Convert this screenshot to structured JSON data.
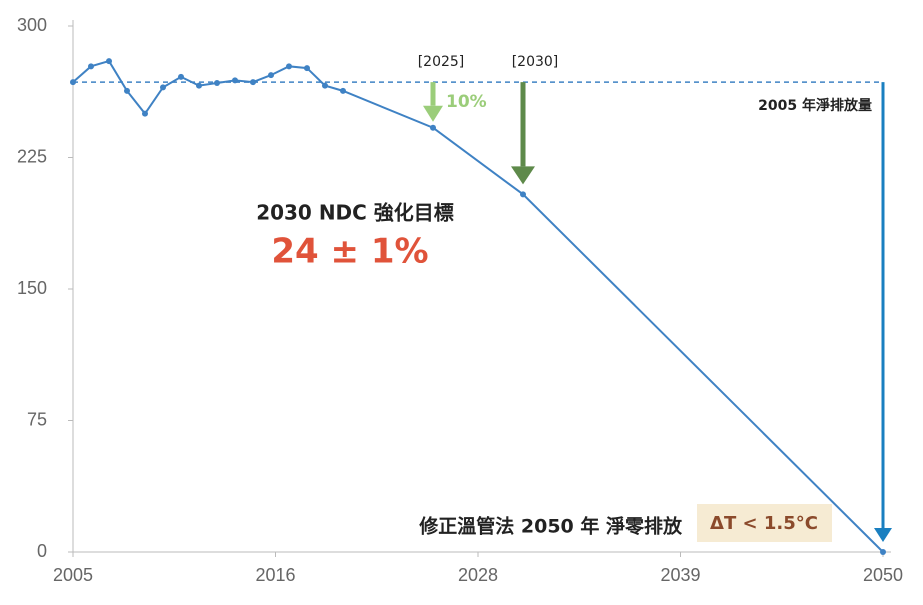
{
  "chart_data": {
    "type": "line",
    "x": [
      2005,
      2006,
      2007,
      2008,
      2009,
      2010,
      2011,
      2012,
      2013,
      2014,
      2015,
      2016,
      2017,
      2018,
      2019,
      2020,
      2025,
      2030,
      2050
    ],
    "series": [
      {
        "color": "#3f82c4",
        "values": [
          268,
          277,
          280,
          263,
          250,
          265,
          271,
          266,
          267.5,
          269,
          268,
          272,
          277,
          276,
          266,
          263,
          242,
          204,
          0
        ]
      }
    ],
    "xlim": [
      2005,
      2050
    ],
    "xticks": [
      2005,
      {
        "value": 2016.25,
        "label": "2016"
      },
      {
        "value": 2027.5,
        "label": "2028"
      },
      {
        "value": 2038.75,
        "label": "2039"
      },
      2050
    ],
    "ylim": [
      0,
      300
    ],
    "yticks": [
      0,
      75,
      150,
      225,
      300
    ],
    "reference": {
      "value": 268,
      "label": "2005 年淨排放量"
    },
    "marker_labels": [
      "[2025]",
      "[2030]"
    ],
    "reduction_label": "10%",
    "target_title": "2030 NDC 強化目標",
    "target_value": "24 ± 1%",
    "goal_label": "修正溫管法 2050 年 淨零排放",
    "goal_badge": "ΔT < 1.5°C"
  }
}
